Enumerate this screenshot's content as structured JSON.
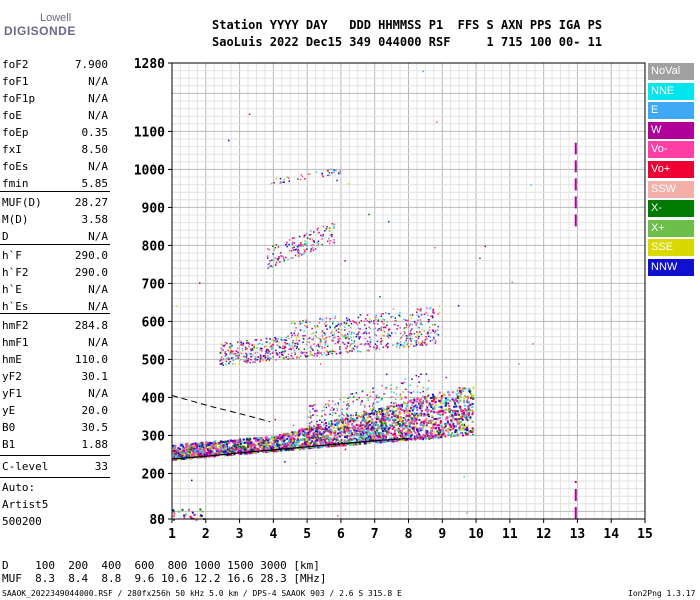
{
  "logo": {
    "line1": "Lowell",
    "line2": "DIGISONDE"
  },
  "header": {
    "line1": "Station YYYY DAY   DDD HHMMSS P1  FFS S AXN PPS IGA PS",
    "line2": "SaoLuis 2022 Dec15 349 044000 RSF     1 715 100 00- 11"
  },
  "params": [
    {
      "label": "foF2",
      "value": "7.900"
    },
    {
      "label": "foF1",
      "value": "N/A"
    },
    {
      "label": "foF1p",
      "value": "N/A"
    },
    {
      "label": "foE",
      "value": "N/A"
    },
    {
      "label": "foEp",
      "value": "0.35"
    },
    {
      "label": "fxI",
      "value": "8.50"
    },
    {
      "label": "foEs",
      "value": "N/A"
    },
    {
      "label": "fmin",
      "value": "5.85"
    },
    {
      "label": "MUF(D)",
      "value": "28.27"
    },
    {
      "label": "M(D)",
      "value": "3.58"
    },
    {
      "label": "D",
      "value": "N/A"
    },
    {
      "label": "h`F",
      "value": "290.0"
    },
    {
      "label": "h`F2",
      "value": "290.0"
    },
    {
      "label": "h`E",
      "value": "N/A"
    },
    {
      "label": "h`Es",
      "value": "N/A"
    },
    {
      "label": "hmF2",
      "value": "284.8"
    },
    {
      "label": "hmF1",
      "value": "N/A"
    },
    {
      "label": "hmE",
      "value": "110.0"
    },
    {
      "label": "yF2",
      "value": "30.1"
    },
    {
      "label": "yF1",
      "value": "N/A"
    },
    {
      "label": "yE",
      "value": "20.0"
    },
    {
      "label": "B0",
      "value": "30.5"
    },
    {
      "label": "B1",
      "value": "1.88"
    },
    {
      "label": "C-level",
      "value": "33"
    }
  ],
  "auto": {
    "line1": "Auto:",
    "line2": "Artist5",
    "line3": "500200"
  },
  "legend": [
    {
      "label": "NoVal",
      "color": "#a0a0a0"
    },
    {
      "label": "NNE",
      "color": "#00e5ee"
    },
    {
      "label": "E",
      "color": "#3fa9f5"
    },
    {
      "label": "W",
      "color": "#b0009a"
    },
    {
      "label": "Vo-",
      "color": "#ff3fa6"
    },
    {
      "label": "Vo+",
      "color": "#ee0033"
    },
    {
      "label": "SSW",
      "color": "#f4b0a8"
    },
    {
      "label": "X-",
      "color": "#007a00"
    },
    {
      "label": "X+",
      "color": "#6dbf4b"
    },
    {
      "label": "SSE",
      "color": "#d9d900"
    },
    {
      "label": "NNW",
      "color": "#1010d0"
    }
  ],
  "footer": {
    "dist_line": "D    100  200  400  600  800 1000 1500 3000 [km]",
    "muf_line": "MUF  8.3  8.4  8.8  9.6 10.6 12.2 16.6 28.3 [MHz]",
    "file_line": "SAAOK_2022349044000.RSF / 280fx256h 50 kHz 5.0 km / DPS-4 SAAOK 903 / 2.6 S 315.8 E",
    "version": "Ion2Png 1.3.17"
  },
  "chart_data": {
    "type": "scatter",
    "xlabel": "",
    "ylabel": "",
    "xlim": [
      1,
      15
    ],
    "ylim": [
      80,
      1280
    ],
    "x_ticks": [
      1,
      2,
      3,
      4,
      5,
      6,
      7,
      8,
      9,
      10,
      11,
      12,
      13,
      14,
      15
    ],
    "y_ticks": [
      80,
      200,
      300,
      400,
      500,
      600,
      700,
      800,
      900,
      1000,
      1100,
      1280
    ],
    "grid": true,
    "ionogram_clusters": [
      {
        "name": "F2 trace",
        "x_range": [
          1.0,
          10.0
        ],
        "h_range": [
          250,
          420
        ]
      },
      {
        "name": "2F multihop",
        "x_range": [
          2.5,
          9.0
        ],
        "h_range": [
          480,
          650
        ]
      },
      {
        "name": "3F multihop",
        "x_range": [
          3.8,
          5.8
        ],
        "h_range": [
          740,
          880
        ]
      },
      {
        "name": "4F multihop",
        "x_range": [
          3.9,
          6.0
        ],
        "h_range": [
          950,
          1010
        ]
      },
      {
        "name": "low echoes",
        "x_range": [
          1.0,
          2.0
        ],
        "h_range": [
          80,
          110
        ]
      }
    ],
    "interference_lines": [
      {
        "x": 12.95,
        "h_range": [
          80,
          180
        ]
      },
      {
        "x": 12.95,
        "h_range": [
          850,
          1070
        ]
      }
    ],
    "profile_curve": {
      "x": [
        1.0,
        2.0,
        3.0,
        4.0,
        5.0,
        6.0,
        7.0,
        8.0
      ],
      "h": [
        238,
        245,
        254,
        262,
        270,
        278,
        286,
        292
      ]
    },
    "dashed_curve": {
      "x": [
        1.0,
        1.6,
        2.2,
        2.8,
        3.4,
        3.9
      ],
      "h": [
        405,
        390,
        375,
        362,
        348,
        336
      ]
    }
  }
}
